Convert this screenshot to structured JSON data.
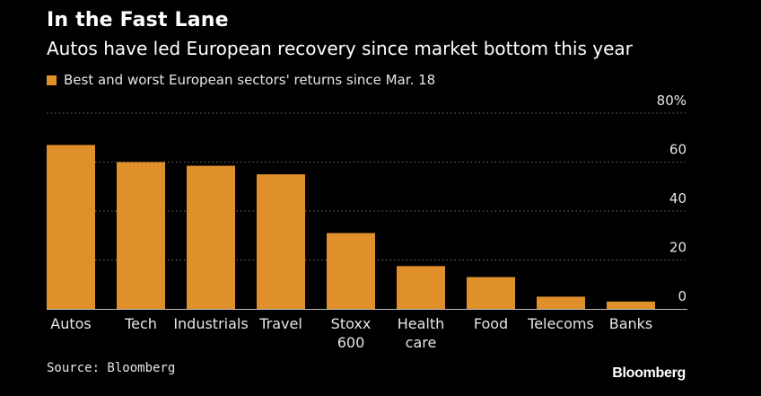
{
  "header": {
    "title": "In the Fast Lane",
    "subtitle": "Autos have led European recovery since market bottom this year"
  },
  "legend": {
    "label": "Best and worst European sectors' returns since Mar. 18"
  },
  "footer": {
    "source": "Source: Bloomberg",
    "brand": "Bloomberg"
  },
  "colors": {
    "bar": "#e0902a",
    "background": "#000000",
    "text": "#ffffff",
    "grid": "#6e6e6e"
  },
  "chart_data": {
    "type": "bar",
    "title": "In the Fast Lane",
    "subtitle": "Autos have led European recovery since market bottom this year",
    "categories": [
      [
        "Autos"
      ],
      [
        "Tech"
      ],
      [
        "Industrials"
      ],
      [
        "Travel"
      ],
      [
        "Stoxx",
        "600"
      ],
      [
        "Health",
        "care"
      ],
      [
        "Food"
      ],
      [
        "Telecoms"
      ],
      [
        "Banks"
      ]
    ],
    "series": [
      {
        "name": "Best and worst European sectors' returns since Mar. 18",
        "values": [
          67,
          60,
          58.5,
          55,
          31,
          17.5,
          13,
          5,
          3
        ]
      }
    ],
    "ylim": [
      0,
      80
    ],
    "yticks": [
      {
        "value": 80,
        "label": "80%"
      },
      {
        "value": 60,
        "label": "60"
      },
      {
        "value": 40,
        "label": "40"
      },
      {
        "value": 20,
        "label": "20"
      },
      {
        "value": 0,
        "label": "0"
      }
    ],
    "grid": true,
    "grid_style": "dotted horizontal",
    "y_axis_position": "right",
    "legend_position": "top-left"
  }
}
